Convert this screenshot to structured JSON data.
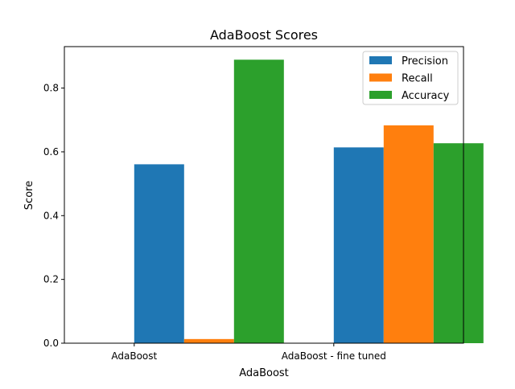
{
  "chart_data": {
    "type": "bar",
    "title": "AdaBoost Scores",
    "xlabel": "AdaBoost",
    "ylabel": "Score",
    "categories": [
      "AdaBoost",
      "AdaBoost - fine tuned"
    ],
    "series": [
      {
        "name": "Precision",
        "color": "#1f77b4",
        "values": [
          0.561,
          0.614
        ]
      },
      {
        "name": "Recall",
        "color": "#ff7f0e",
        "values": [
          0.013,
          0.683
        ]
      },
      {
        "name": "Accuracy",
        "color": "#2ca02c",
        "values": [
          0.889,
          0.627
        ]
      }
    ],
    "ylim": [
      0,
      0.93
    ],
    "yticks": [
      "0.0",
      "0.2",
      "0.4",
      "0.6",
      "0.8"
    ],
    "ytick_values": [
      0,
      0.2,
      0.4,
      0.6,
      0.8
    ],
    "grid": false,
    "legend_position": "top-right"
  }
}
